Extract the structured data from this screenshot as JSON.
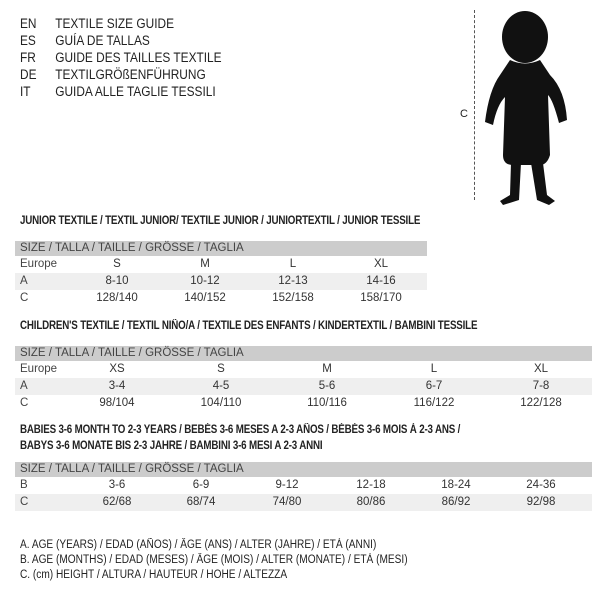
{
  "header": {
    "languages": [
      {
        "code": "EN",
        "title": "TEXTILE SIZE GUIDE"
      },
      {
        "code": "ES",
        "title": "GUÍA DE TALLAS"
      },
      {
        "code": "FR",
        "title": "GUIDE DES TAILLES TEXTILE"
      },
      {
        "code": "DE",
        "title": "TEXTILGRÖßENFÜHRUNG"
      },
      {
        "code": "IT",
        "title": "GUIDA ALLE TAGLIE TESSILI"
      }
    ]
  },
  "figure": {
    "measure_label": "C"
  },
  "size_header": "SIZE / TALLA / TAILLE / GRÖSSE / TAGLIA",
  "junior": {
    "title": "JUNIOR TEXTILE / TEXTIL JUNIOR/ TEXTILE JUNIOR / JUNIORTEXTIL / JUNIOR TESSILE",
    "rows": [
      {
        "label": "Europe",
        "values": [
          "S",
          "M",
          "L",
          "XL"
        ]
      },
      {
        "label": "A",
        "values": [
          "8-10",
          "10-12",
          "12-13",
          "14-16"
        ]
      },
      {
        "label": "C",
        "values": [
          "128/140",
          "140/152",
          "152/158",
          "158/170"
        ]
      }
    ]
  },
  "children": {
    "title": "CHILDREN'S TEXTILE / TEXTIL NIÑO/A / TEXTILE DES ENFANTS / KINDERTEXTIL / BAMBINI TESSILE",
    "rows": [
      {
        "label": "Europe",
        "values": [
          "XS",
          "S",
          "M",
          "L",
          "XL"
        ]
      },
      {
        "label": "A",
        "values": [
          "3-4",
          "4-5",
          "5-6",
          "6-7",
          "7-8"
        ]
      },
      {
        "label": "C",
        "values": [
          "98/104",
          "104/110",
          "110/116",
          "116/122",
          "122/128"
        ]
      }
    ]
  },
  "babies": {
    "title_line1": "BABIES 3-6 MONTH TO 2-3 YEARS / BEBÉS 3-6 MESES A 2-3 AÑOS / BÉBÉS 3-6 MOIS À 2-3 ANS /",
    "title_line2": "BABYS 3-6 MONATE BIS 2-3 JAHRE / BAMBINI 3-6 MESI A 2-3 ANNI",
    "rows": [
      {
        "label": "B",
        "values": [
          "3-6",
          "6-9",
          "9-12",
          "12-18",
          "18-24",
          "24-36"
        ]
      },
      {
        "label": "C",
        "values": [
          "62/68",
          "68/74",
          "74/80",
          "80/86",
          "86/92",
          "92/98"
        ]
      }
    ]
  },
  "legend": [
    "A. AGE (YEARS) / EDAD (AÑOS) / ÂGE (ANS) / ALTER (JAHRE) / ETÀ (ANNI)",
    "B. AGE (MONTHS) / EDAD (MESES) / ÂGE (MOIS) / ALTER (MONATE) / ETÀ (MESI)",
    "C. (cm) HEIGHT / ALTURA / HAUTEUR / HÖHE / ALTEZZA"
  ]
}
